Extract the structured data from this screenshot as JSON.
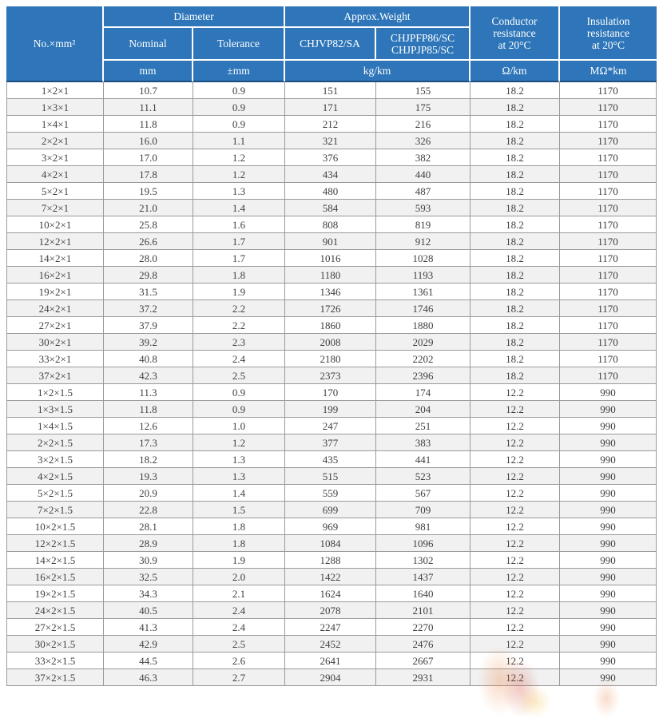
{
  "colors": {
    "header_bg": "#2e76b9",
    "header_border": "#1c4f80",
    "stripe": "#f1f1f1",
    "grid": "#9a9a9a",
    "text": "#3f3f3f"
  },
  "table": {
    "header": {
      "no_col": "No.×mm²",
      "diameter_group": "Diameter",
      "weight_group": "Approx.Weight",
      "nominal": "Nominal",
      "tolerance": "Tolerance",
      "model1": "CHJVP82/SA",
      "model2": "CHJPFP86/SC\nCHJPJP85/SC",
      "conductor": "Conductor\nresistance\nat 20°C",
      "insulation": "Insulation\nresistance\nat 20°C"
    },
    "units": {
      "mm": "mm",
      "pmm": "±mm",
      "kgkm": "kg/km",
      "ohmkm": "Ω/km",
      "mohmkm": "MΩ*km"
    },
    "rows": [
      [
        "1×2×1",
        "10.7",
        "0.9",
        "151",
        "155",
        "18.2",
        "1170"
      ],
      [
        "1×3×1",
        "11.1",
        "0.9",
        "171",
        "175",
        "18.2",
        "1170"
      ],
      [
        "1×4×1",
        "11.8",
        "0.9",
        "212",
        "216",
        "18.2",
        "1170"
      ],
      [
        "2×2×1",
        "16.0",
        "1.1",
        "321",
        "326",
        "18.2",
        "1170"
      ],
      [
        "3×2×1",
        "17.0",
        "1.2",
        "376",
        "382",
        "18.2",
        "1170"
      ],
      [
        "4×2×1",
        "17.8",
        "1.2",
        "434",
        "440",
        "18.2",
        "1170"
      ],
      [
        "5×2×1",
        "19.5",
        "1.3",
        "480",
        "487",
        "18.2",
        "1170"
      ],
      [
        "7×2×1",
        "21.0",
        "1.4",
        "584",
        "593",
        "18.2",
        "1170"
      ],
      [
        "10×2×1",
        "25.8",
        "1.6",
        "808",
        "819",
        "18.2",
        "1170"
      ],
      [
        "12×2×1",
        "26.6",
        "1.7",
        "901",
        "912",
        "18.2",
        "1170"
      ],
      [
        "14×2×1",
        "28.0",
        "1.7",
        "1016",
        "1028",
        "18.2",
        "1170"
      ],
      [
        "16×2×1",
        "29.8",
        "1.8",
        "1180",
        "1193",
        "18.2",
        "1170"
      ],
      [
        "19×2×1",
        "31.5",
        "1.9",
        "1346",
        "1361",
        "18.2",
        "1170"
      ],
      [
        "24×2×1",
        "37.2",
        "2.2",
        "1726",
        "1746",
        "18.2",
        "1170"
      ],
      [
        "27×2×1",
        "37.9",
        "2.2",
        "1860",
        "1880",
        "18.2",
        "1170"
      ],
      [
        "30×2×1",
        "39.2",
        "2.3",
        "2008",
        "2029",
        "18.2",
        "1170"
      ],
      [
        "33×2×1",
        "40.8",
        "2.4",
        "2180",
        "2202",
        "18.2",
        "1170"
      ],
      [
        "37×2×1",
        "42.3",
        "2.5",
        "2373",
        "2396",
        "18.2",
        "1170"
      ],
      [
        "1×2×1.5",
        "11.3",
        "0.9",
        "170",
        "174",
        "12.2",
        "990"
      ],
      [
        "1×3×1.5",
        "11.8",
        "0.9",
        "199",
        "204",
        "12.2",
        "990"
      ],
      [
        "1×4×1.5",
        "12.6",
        "1.0",
        "247",
        "251",
        "12.2",
        "990"
      ],
      [
        "2×2×1.5",
        "17.3",
        "1.2",
        "377",
        "383",
        "12.2",
        "990"
      ],
      [
        "3×2×1.5",
        "18.2",
        "1.3",
        "435",
        "441",
        "12.2",
        "990"
      ],
      [
        "4×2×1.5",
        "19.3",
        "1.3",
        "515",
        "523",
        "12.2",
        "990"
      ],
      [
        "5×2×1.5",
        "20.9",
        "1.4",
        "559",
        "567",
        "12.2",
        "990"
      ],
      [
        "7×2×1.5",
        "22.8",
        "1.5",
        "699",
        "709",
        "12.2",
        "990"
      ],
      [
        "10×2×1.5",
        "28.1",
        "1.8",
        "969",
        "981",
        "12.2",
        "990"
      ],
      [
        "12×2×1.5",
        "28.9",
        "1.8",
        "1084",
        "1096",
        "12.2",
        "990"
      ],
      [
        "14×2×1.5",
        "30.9",
        "1.9",
        "1288",
        "1302",
        "12.2",
        "990"
      ],
      [
        "16×2×1.5",
        "32.5",
        "2.0",
        "1422",
        "1437",
        "12.2",
        "990"
      ],
      [
        "19×2×1.5",
        "34.3",
        "2.1",
        "1624",
        "1640",
        "12.2",
        "990"
      ],
      [
        "24×2×1.5",
        "40.5",
        "2.4",
        "2078",
        "2101",
        "12.2",
        "990"
      ],
      [
        "27×2×1.5",
        "41.3",
        "2.4",
        "2247",
        "2270",
        "12.2",
        "990"
      ],
      [
        "30×2×1.5",
        "42.9",
        "2.5",
        "2452",
        "2476",
        "12.2",
        "990"
      ],
      [
        "33×2×1.5",
        "44.5",
        "2.6",
        "2641",
        "2667",
        "12.2",
        "990"
      ],
      [
        "37×2×1.5",
        "46.3",
        "2.7",
        "2904",
        "2931",
        "12.2",
        "990"
      ]
    ]
  }
}
